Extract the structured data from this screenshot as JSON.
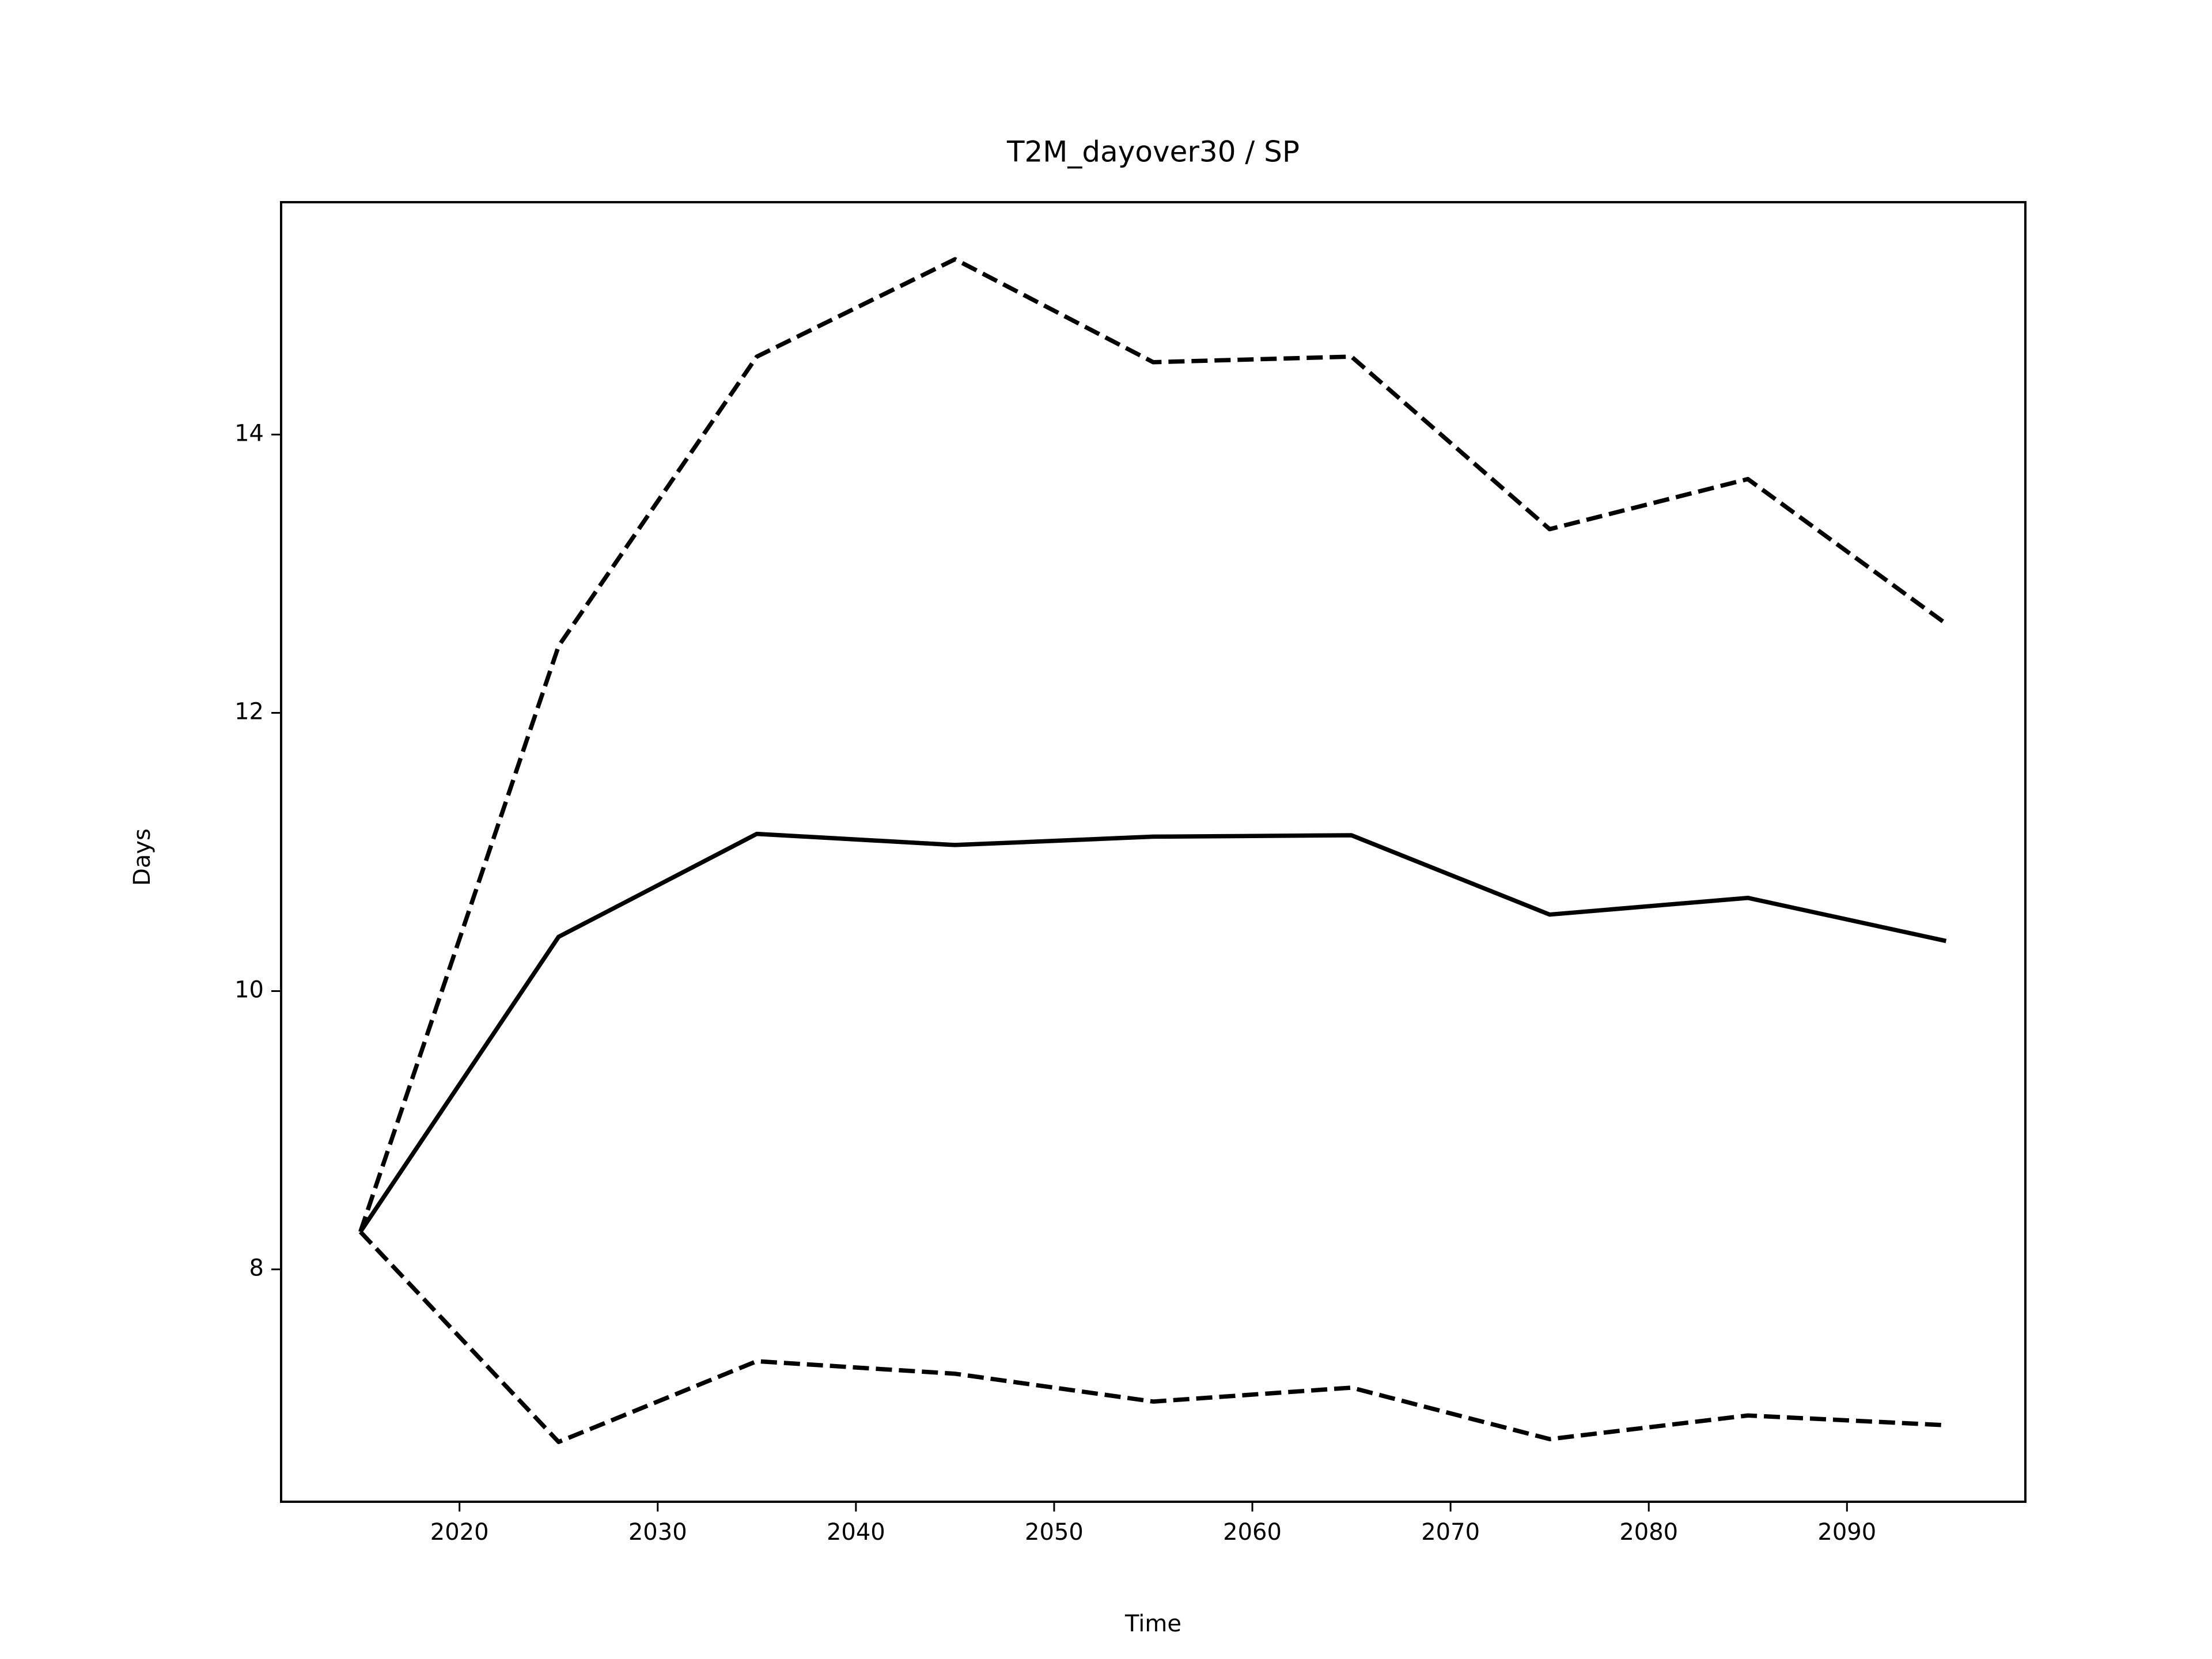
{
  "chart_data": {
    "type": "line",
    "title": "T2M_dayover30 / SP",
    "x_label": "Time",
    "y_label": "Days",
    "x": [
      2015,
      2025,
      2035,
      2045,
      2055,
      2065,
      2075,
      2085,
      2095
    ],
    "series": [
      {
        "color": "#000000",
        "style": "solid",
        "values": [
          8.27,
          10.39,
          11.13,
          11.05,
          11.11,
          11.12,
          10.55,
          10.67,
          10.36
        ]
      },
      {
        "color": "#000000",
        "style": "dashed",
        "values": [
          8.27,
          12.48,
          14.56,
          15.26,
          14.52,
          14.56,
          13.32,
          13.68,
          12.64
        ]
      },
      {
        "color": "#000000",
        "style": "dashed",
        "values": [
          8.27,
          6.76,
          7.34,
          7.25,
          7.05,
          7.15,
          6.78,
          6.95,
          6.88
        ]
      }
    ],
    "xlim": [
      2011,
      2099
    ],
    "xticks": [
      2020,
      2030,
      2040,
      2050,
      2060,
      2070,
      2080,
      2090
    ],
    "ylim": [
      6.33,
      15.67
    ],
    "yticks": [
      8,
      10,
      12,
      14
    ],
    "grid": false
  }
}
